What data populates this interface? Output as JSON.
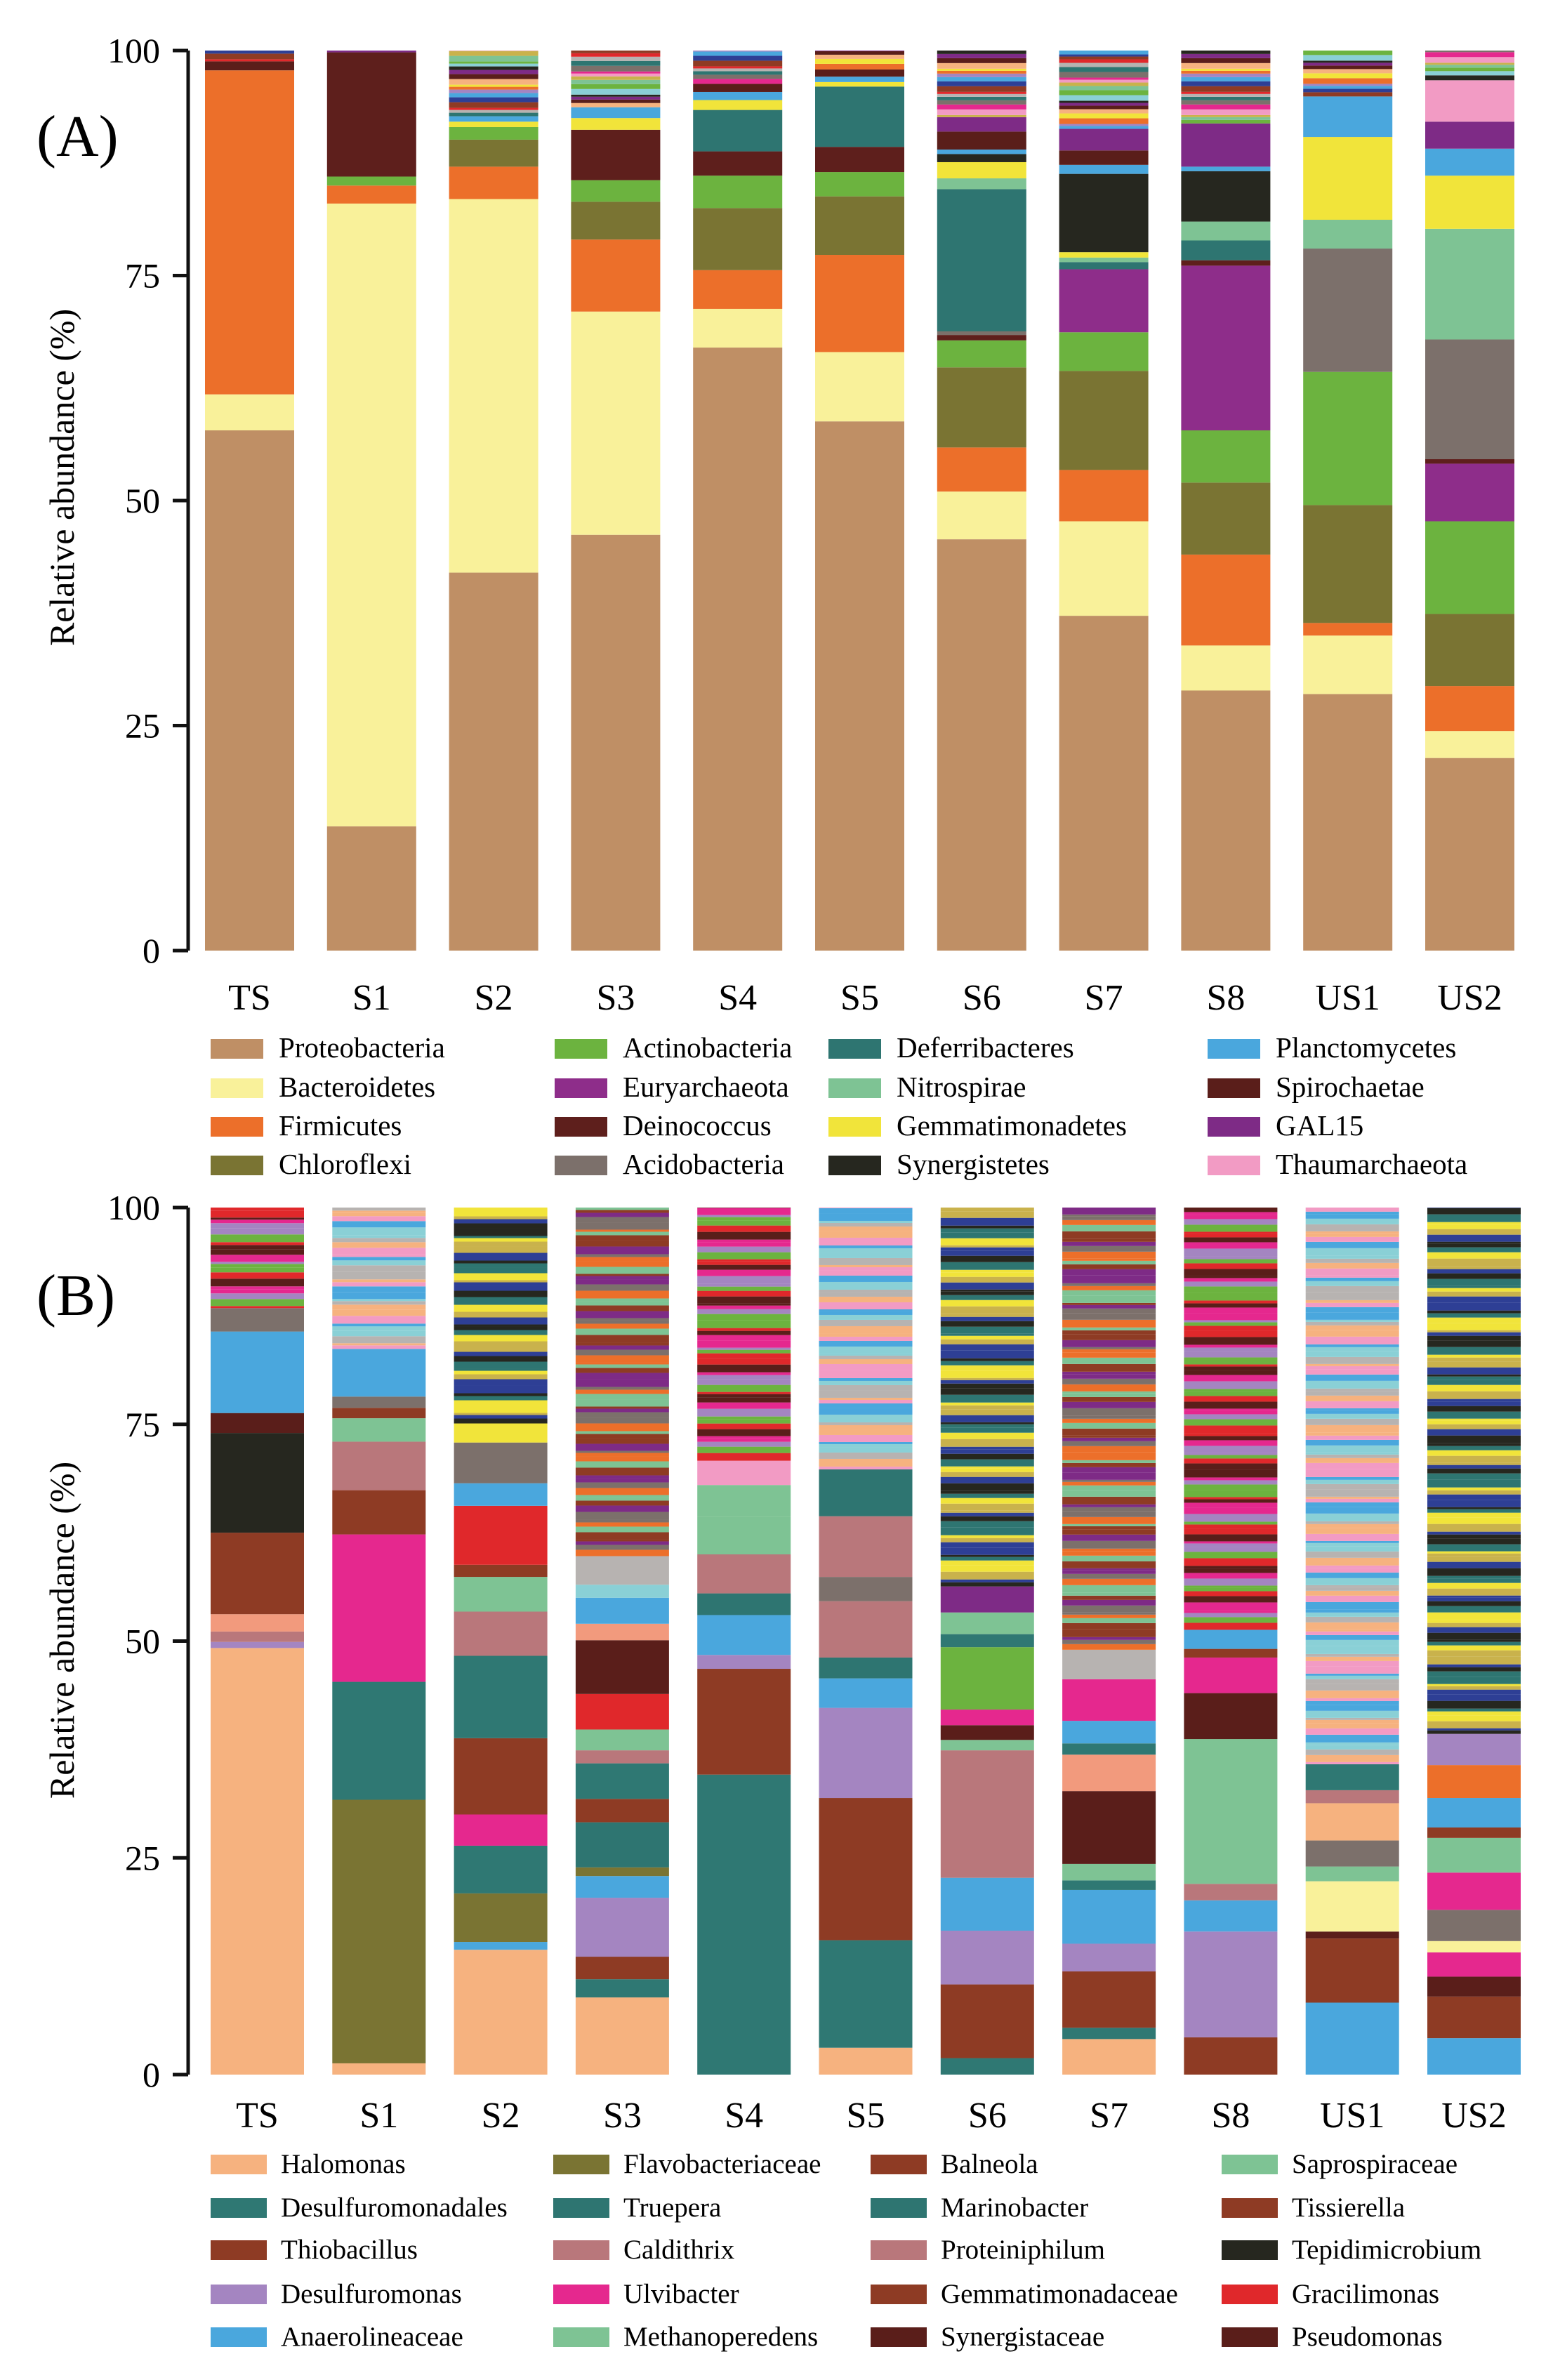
{
  "colors": {
    "Proteobacteria": "#bf8f65",
    "Bacteroidetes": "#f9f19a",
    "Firmicutes": "#ec6f2a",
    "Chloroflexi": "#7a7433",
    "Actinobacteria": "#6cb33f",
    "Euryarchaeota": "#8e2d8a",
    "Deinococcus": "#5e1f1c",
    "Acidobacteria": "#7c706b",
    "Deferribacteres": "#2e7571",
    "Nitrospirae": "#7ec394",
    "Gemmatimonadetes": "#f1e43a",
    "Synergistetes": "#26271f",
    "Planctomycetes": "#4aa7dd",
    "Spirochaetae": "#5a1e1a",
    "GAL15": "#7e2b86",
    "Thaumarchaeota": "#f29bc4",
    "Other": "#c9c0c0",
    "Halomonas": "#f6b27f",
    "Desulfuromonadales": "#2f7873",
    "Thiobacillus": "#8e3b24",
    "Desulfuromonas": "#a485c1",
    "Anaerolineaceae": "#4aa7dd",
    "Flavobacteriaceae": "#7a7433",
    "Truepera": "#2e7571",
    "Caldithrix": "#b9777b",
    "Ulvibacter": "#e5288e",
    "Methanoperedens": "#7ec394",
    "Balneola": "#8e3b24",
    "Marinobacter": "#2e7571",
    "Proteiniphilum": "#b9777b",
    "Gemmatimonadaceae": "#8e3b24",
    "Synergistaceae": "#5a1e1a",
    "Saprospiraceae": "#7ec394",
    "Tissierella": "#8e3b24",
    "Tepidimicrobium": "#26271f",
    "Gracilimonas": "#e0282b",
    "Pseudomonas": "#5a1e1a",
    "Bright": "#6cb33f",
    "Salmon": "#f29a7d",
    "Gray": "#7c706b",
    "Silver": "#b7b3b1",
    "Cyan": "#8ad0d6",
    "Purple2": "#7e2b86",
    "Navy": "#2e3f95",
    "Yellow2": "#f9f19a"
  },
  "stripe_palette": [
    "#e0282b",
    "#4aa7dd",
    "#f1e43a",
    "#7e2b86",
    "#6cb33f",
    "#f29bc4",
    "#2e7571",
    "#8e3b24",
    "#a485c1",
    "#f6b27f",
    "#26271f",
    "#7ec394",
    "#e5288e",
    "#b7b3b1",
    "#2e3f95",
    "#ec6f2a",
    "#5a1e1a",
    "#8ad0d6",
    "#c9b24c",
    "#7c706b"
  ],
  "chart_data": [
    {
      "type": "bar",
      "stacked": true,
      "panel_label": "(A)",
      "title": "",
      "xlabel": "",
      "ylabel": "Relative abundance (%)",
      "ylim": [
        0,
        100
      ],
      "yticks": [
        0,
        25,
        50,
        75,
        100
      ],
      "categories": [
        "TS",
        "S1",
        "S2",
        "S3",
        "S4",
        "S5",
        "S6",
        "S7",
        "S8",
        "US1",
        "US2"
      ],
      "series": [
        {
          "name": "Proteobacteria",
          "values": [
            57.8,
            13.8,
            42.0,
            46.2,
            67.0,
            58.8,
            45.7,
            37.2,
            28.9,
            28.5,
            21.4
          ]
        },
        {
          "name": "Bacteroidetes",
          "values": [
            4.0,
            69.2,
            41.5,
            24.8,
            4.3,
            7.7,
            5.3,
            10.5,
            5.0,
            6.5,
            3.0
          ]
        },
        {
          "name": "Firmicutes",
          "values": [
            36.0,
            2.0,
            3.6,
            8.0,
            4.3,
            10.8,
            4.9,
            5.7,
            10.1,
            1.4,
            5.0
          ]
        },
        {
          "name": "Chloroflexi",
          "values": [
            0,
            0,
            3.0,
            4.2,
            6.9,
            6.5,
            8.9,
            11.0,
            8.0,
            13.1,
            8.0
          ]
        },
        {
          "name": "Actinobacteria",
          "values": [
            0,
            1.0,
            1.4,
            2.4,
            3.6,
            2.7,
            3.0,
            4.3,
            5.8,
            14.8,
            10.3
          ]
        },
        {
          "name": "Euryarchaeota",
          "values": [
            0,
            0,
            0,
            0,
            0,
            0,
            0,
            7.0,
            18.3,
            0,
            6.4
          ]
        },
        {
          "name": "Deinococcus",
          "values": [
            0,
            13.8,
            0,
            5.6,
            2.7,
            2.8,
            0.6,
            0,
            0.6,
            0,
            0.5
          ]
        },
        {
          "name": "Acidobacteria",
          "values": [
            0,
            0,
            0,
            0,
            0,
            0,
            0.4,
            0,
            0,
            13.7,
            13.3
          ]
        },
        {
          "name": "Deferribacteres",
          "values": [
            0,
            0,
            0,
            0,
            4.6,
            6.7,
            15.8,
            0.8,
            2.2,
            0,
            0
          ]
        },
        {
          "name": "Nitrospirae",
          "values": [
            0,
            0,
            0,
            0,
            0,
            0,
            1.2,
            0.5,
            2.1,
            3.2,
            12.3
          ]
        },
        {
          "name": "Gemmatimonadetes",
          "values": [
            0,
            0,
            0.6,
            1.3,
            1.1,
            0.5,
            1.8,
            0.6,
            0,
            9.2,
            5.9
          ]
        },
        {
          "name": "Synergistetes",
          "values": [
            0,
            0,
            0,
            0,
            0,
            0,
            0.9,
            8.7,
            5.6,
            0,
            0
          ]
        },
        {
          "name": "Planctomycetes",
          "values": [
            0,
            0,
            0.6,
            1.2,
            0.9,
            0.6,
            0.5,
            1.0,
            0.5,
            4.5,
            3.0
          ]
        },
        {
          "name": "Spirochaetae",
          "values": [
            1.0,
            0,
            0,
            0,
            0.9,
            0.8,
            2.0,
            1.6,
            0,
            0,
            0
          ]
        },
        {
          "name": "GAL15",
          "values": [
            0,
            0,
            0,
            0,
            0,
            0,
            1.6,
            2.4,
            4.8,
            0,
            3.0
          ]
        },
        {
          "name": "Thaumarchaeota",
          "values": [
            0,
            0,
            0,
            0,
            0,
            0,
            0,
            0,
            0,
            0,
            4.6
          ]
        }
      ],
      "legend": {
        "placement": "below",
        "columns": [
          [
            "Proteobacteria",
            "Bacteroidetes",
            "Firmicutes",
            "Chloroflexi"
          ],
          [
            "Actinobacteria",
            "Euryarchaeota",
            "Deinococcus",
            "Acidobacteria"
          ],
          [
            "Deferribacteres",
            "Nitrospirae",
            "Gemmatimonadetes",
            "Synergistetes"
          ],
          [
            "Planctomycetes",
            "Spirochaetae",
            "GAL15",
            "Thaumarchaeota"
          ]
        ]
      }
    },
    {
      "type": "bar",
      "stacked": true,
      "panel_label": "(B)",
      "title": "",
      "xlabel": "",
      "ylabel": "Relative abundance (%)",
      "ylim": [
        0,
        100
      ],
      "yticks": [
        0,
        25,
        50,
        75,
        100
      ],
      "categories": [
        "TS",
        "S1",
        "S2",
        "S3",
        "S4",
        "S5",
        "S6",
        "S7",
        "S8",
        "US1",
        "US2"
      ],
      "bar_segments": [
        [
          [
            "Halomonas",
            49.2
          ],
          [
            "Desulfuromonas",
            0.7
          ],
          [
            "Caldithrix",
            1.2
          ],
          [
            "Salmon",
            2.0
          ],
          [
            "Balneola",
            9.4
          ],
          [
            "Tepidimicrobium",
            11.5
          ],
          [
            "Synergistaceae",
            2.3
          ],
          [
            "Anaerolineaceae",
            9.4
          ],
          [
            "Gray",
            2.7
          ]
        ],
        [
          [
            "Halomonas",
            1.3
          ],
          [
            "Flavobacteriaceae",
            30.4
          ],
          [
            "Desulfuromonadales",
            13.6
          ],
          [
            "Ulvibacter",
            17.0
          ],
          [
            "Thiobacillus",
            5.1
          ],
          [
            "Caldithrix",
            5.6
          ],
          [
            "Methanoperedens",
            2.7
          ],
          [
            "Tissierella",
            1.2
          ],
          [
            "Gray",
            1.3
          ],
          [
            "Anaerolineaceae",
            5.5
          ]
        ],
        [
          [
            "Halomonas",
            14.4
          ],
          [
            "Anaerolineaceae",
            0.9
          ],
          [
            "Flavobacteriaceae",
            5.6
          ],
          [
            "Desulfuromonadales",
            5.5
          ],
          [
            "Ulvibacter",
            3.6
          ],
          [
            "Thiobacillus",
            8.8
          ],
          [
            "Desulfuromonadales",
            9.5
          ],
          [
            "Caldithrix",
            5.1
          ],
          [
            "Methanoperedens",
            4.0
          ],
          [
            "Tissierella",
            1.4
          ],
          [
            "Gracilimonas",
            6.8
          ],
          [
            "Anaerolineaceae",
            2.6
          ],
          [
            "Gray",
            4.7
          ],
          [
            "Gemmatimonadetes",
            2.2
          ]
        ],
        [
          [
            "Halomonas",
            8.9
          ],
          [
            "Desulfuromonadales",
            2.1
          ],
          [
            "Thiobacillus",
            2.6
          ],
          [
            "Desulfuromonas",
            6.8
          ],
          [
            "Anaerolineaceae",
            2.5
          ],
          [
            "Flavobacteriaceae",
            1.0
          ],
          [
            "Truepera",
            5.2
          ],
          [
            "Thiobacillus",
            2.7
          ],
          [
            "Desulfuromonadales",
            4.1
          ],
          [
            "Caldithrix",
            1.5
          ],
          [
            "Methanoperedens",
            2.4
          ],
          [
            "Gracilimonas",
            4.1
          ],
          [
            "Synergistaceae",
            6.2
          ],
          [
            "Salmon",
            1.9
          ],
          [
            "Anaerolineaceae",
            3.0
          ],
          [
            "Cyan",
            1.5
          ],
          [
            "Silver",
            3.3
          ]
        ],
        [
          [
            "Desulfuromonadales",
            34.6
          ],
          [
            "Thiobacillus",
            12.2
          ],
          [
            "Desulfuromonas",
            1.6
          ],
          [
            "Anaerolineaceae",
            4.6
          ],
          [
            "Truepera",
            2.5
          ],
          [
            "Caldithrix",
            4.5
          ],
          [
            "Methanoperedens",
            4.3
          ],
          [
            "Saprospiraceae",
            3.7
          ],
          [
            "Thaumarchaeota",
            2.8
          ]
        ],
        [
          [
            "Halomonas",
            3.1
          ],
          [
            "Desulfuromonadales",
            12.4
          ],
          [
            "Balneola",
            16.4
          ],
          [
            "Desulfuromonas",
            10.4
          ],
          [
            "Anaerolineaceae",
            3.4
          ],
          [
            "Truepera",
            2.4
          ],
          [
            "Caldithrix",
            6.5
          ],
          [
            "Gray",
            2.8
          ],
          [
            "Proteiniphilum",
            7.0
          ],
          [
            "Truepera",
            5.4
          ]
        ],
        [
          [
            "Desulfuromonadales",
            1.9
          ],
          [
            "Thiobacillus",
            8.5
          ],
          [
            "Desulfuromonas",
            6.2
          ],
          [
            "Anaerolineaceae",
            6.1
          ],
          [
            "Caldithrix",
            14.7
          ],
          [
            "Methanoperedens",
            1.2
          ],
          [
            "Synergistaceae",
            1.7
          ],
          [
            "Ulvibacter",
            1.8
          ],
          [
            "Bright",
            7.2
          ],
          [
            "Desulfuromonadales",
            1.5
          ],
          [
            "Methanoperedens",
            2.5
          ],
          [
            "Purple2",
            3.0
          ]
        ],
        [
          [
            "Halomonas",
            4.1
          ],
          [
            "Desulfuromonadales",
            1.3
          ],
          [
            "Thiobacillus",
            6.5
          ],
          [
            "Desulfuromonas",
            3.2
          ],
          [
            "Anaerolineaceae",
            6.2
          ],
          [
            "Desulfuromonadales",
            1.1
          ],
          [
            "Methanoperedens",
            1.9
          ],
          [
            "Synergistaceae",
            8.4
          ],
          [
            "Salmon",
            4.2
          ],
          [
            "Desulfuromonadales",
            1.3
          ],
          [
            "Anaerolineaceae",
            2.6
          ],
          [
            "Ulvibacter",
            4.8
          ],
          [
            "Silver",
            3.4
          ]
        ],
        [
          [
            "Thiobacillus",
            4.3
          ],
          [
            "Desulfuromonas",
            12.2
          ],
          [
            "Anaerolineaceae",
            3.6
          ],
          [
            "Caldithrix",
            1.9
          ],
          [
            "Saprospiraceae",
            16.7
          ],
          [
            "Synergistaceae",
            5.3
          ],
          [
            "Ulvibacter",
            4.1
          ],
          [
            "Thiobacillus",
            1.0
          ],
          [
            "Anaerolineaceae",
            2.2
          ]
        ],
        [
          [
            "Anaerolineaceae",
            8.3
          ],
          [
            "Thiobacillus",
            7.4
          ],
          [
            "Synergistaceae",
            0.8
          ],
          [
            "Yellow2",
            5.8
          ],
          [
            "Saprospiraceae",
            1.7
          ],
          [
            "Gray",
            3.0
          ],
          [
            "Halomonas",
            4.3
          ],
          [
            "Caldithrix",
            1.5
          ],
          [
            "Desulfuromonadales",
            3.0
          ]
        ],
        [
          [
            "Anaerolineaceae",
            4.2
          ],
          [
            "Thiobacillus",
            4.8
          ],
          [
            "Synergistaceae",
            2.3
          ],
          [
            "Ulvibacter",
            2.8
          ],
          [
            "Yellow2",
            1.3
          ],
          [
            "Gray",
            3.6
          ],
          [
            "Ulvibacter",
            4.3
          ],
          [
            "Saprospiraceae",
            4.0
          ],
          [
            "Tissierella",
            1.2
          ],
          [
            "Anaerolineaceae",
            3.4
          ],
          [
            "Firmicutes",
            3.8
          ],
          [
            "Desulfuromonas",
            3.6
          ]
        ]
      ],
      "legend": {
        "placement": "below",
        "columns": [
          [
            "Halomonas",
            "Desulfuromonadales",
            "Thiobacillus",
            "Desulfuromonas",
            "Anaerolineaceae"
          ],
          [
            "Flavobacteriaceae",
            "Truepera",
            "Caldithrix",
            "Ulvibacter",
            "Methanoperedens"
          ],
          [
            "Balneola",
            "Marinobacter",
            "Proteiniphilum",
            "Gemmatimonadaceae",
            "Synergistaceae"
          ],
          [
            "Saprospiraceae",
            "Tissierella",
            "Tepidimicrobium",
            "Gracilimonas",
            "Pseudomonas"
          ]
        ]
      }
    }
  ]
}
